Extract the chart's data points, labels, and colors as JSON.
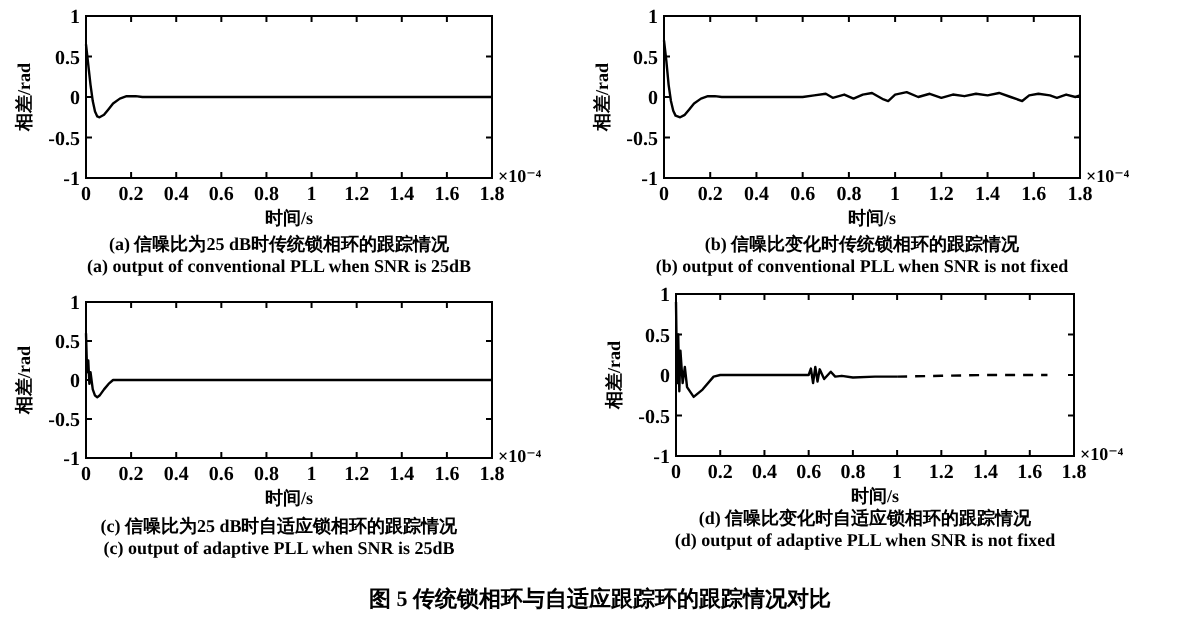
{
  "chart_data": [
    {
      "type": "line",
      "xlabel": "时间/s",
      "ylabel": "相差/rad",
      "xlim": [
        0,
        1.8
      ],
      "ylim": [
        -1,
        1
      ],
      "xticks": [
        0,
        0.2,
        0.4,
        0.6,
        0.8,
        1,
        1.2,
        1.4,
        1.6,
        1.8
      ],
      "yticks": [
        -1,
        -0.5,
        0,
        0.5,
        1
      ],
      "grid": false,
      "series": [
        {
          "color": "#000000",
          "x": [
            0,
            0.01,
            0.02,
            0.03,
            0.04,
            0.05,
            0.06,
            0.08,
            0.1,
            0.12,
            0.15,
            0.18,
            0.2,
            0.22,
            0.25,
            0.3,
            0.5,
            1,
            1.5,
            1.8
          ],
          "values": [
            0.65,
            0.4,
            0.15,
            -0.05,
            -0.18,
            -0.24,
            -0.25,
            -0.22,
            -0.15,
            -0.08,
            -0.02,
            0.01,
            0.01,
            0.01,
            0,
            0,
            0,
            0,
            0,
            0
          ]
        }
      ],
      "annotations": [
        "×10⁻⁴",
        "(a) 信噪比为25 dB时传统锁相环的跟踪情况",
        "(a)  output of conventional PLL when SNR is 25dB"
      ]
    },
    {
      "type": "line",
      "xlabel": "时间/s",
      "ylabel": "相差/rad",
      "xlim": [
        0,
        1.8
      ],
      "ylim": [
        -1,
        1
      ],
      "xticks": [
        0,
        0.2,
        0.4,
        0.6,
        0.8,
        1,
        1.2,
        1.4,
        1.6,
        1.8
      ],
      "yticks": [
        -1,
        -0.5,
        0,
        0.5,
        1
      ],
      "grid": false,
      "series": [
        {
          "color": "#000000",
          "x": [
            0,
            0.01,
            0.02,
            0.03,
            0.04,
            0.05,
            0.07,
            0.09,
            0.11,
            0.13,
            0.16,
            0.19,
            0.22,
            0.25,
            0.3,
            0.5,
            0.6,
            0.65,
            0.7,
            0.73,
            0.78,
            0.82,
            0.86,
            0.9,
            0.95,
            0.97,
            1.0,
            1.05,
            1.1,
            1.15,
            1.2,
            1.25,
            1.3,
            1.35,
            1.4,
            1.45,
            1.5,
            1.55,
            1.58,
            1.62,
            1.67,
            1.7,
            1.74,
            1.78,
            1.8
          ],
          "values": [
            0.7,
            0.45,
            0.15,
            -0.05,
            -0.17,
            -0.23,
            -0.25,
            -0.22,
            -0.15,
            -0.08,
            -0.02,
            0.01,
            0.01,
            0,
            0,
            0,
            0,
            0.02,
            0.04,
            -0.01,
            0.03,
            -0.02,
            0.03,
            0.05,
            -0.03,
            -0.05,
            0.03,
            0.06,
            0,
            0.04,
            -0.01,
            0.03,
            0.01,
            0.04,
            0.02,
            0.05,
            0,
            -0.05,
            0.02,
            0.04,
            0.02,
            -0.01,
            0.03,
            0,
            0.02
          ]
        }
      ],
      "annotations": [
        "×10⁻⁴",
        "(b)  信噪比变化时传统锁相环的跟踪情况",
        "(b) output of conventional PLL when SNR is not fixed"
      ]
    },
    {
      "type": "line",
      "xlabel": "时间/s",
      "ylabel": "相差/rad",
      "xlim": [
        0,
        1.8
      ],
      "ylim": [
        -1,
        1
      ],
      "xticks": [
        0,
        0.2,
        0.4,
        0.6,
        0.8,
        1,
        1.2,
        1.4,
        1.6,
        1.8
      ],
      "yticks": [
        -1,
        -0.5,
        0,
        0.5,
        1
      ],
      "grid": false,
      "series": [
        {
          "color": "#000000",
          "x": [
            0,
            0.005,
            0.01,
            0.015,
            0.02,
            0.03,
            0.04,
            0.05,
            0.06,
            0.08,
            0.1,
            0.12,
            0.15,
            0.3,
            0.6,
            1,
            1.4,
            1.8
          ],
          "values": [
            0.6,
            0.1,
            0.25,
            -0.05,
            0.1,
            -0.12,
            -0.2,
            -0.22,
            -0.2,
            -0.12,
            -0.05,
            0,
            0,
            0,
            0,
            0,
            0,
            0
          ]
        }
      ],
      "annotations": [
        "×10⁻⁴",
        "(c) 信噪比为25 dB时自适应锁相环的跟踪情况",
        "(c) output of adaptive PLL when SNR is 25dB"
      ]
    },
    {
      "type": "line",
      "xlabel": "时间/s",
      "ylabel": "相差/rad",
      "xlim": [
        0,
        1.8
      ],
      "ylim": [
        -1,
        1
      ],
      "xticks": [
        0,
        0.2,
        0.4,
        0.6,
        0.8,
        1,
        1.2,
        1.4,
        1.6,
        1.8
      ],
      "yticks": [
        -1,
        -0.5,
        0,
        0.5,
        1
      ],
      "grid": false,
      "series": [
        {
          "color": "#000000",
          "x": [
            0,
            0.005,
            0.01,
            0.015,
            0.02,
            0.03,
            0.04,
            0.05,
            0.08,
            0.12,
            0.17,
            0.2,
            0.4,
            0.6,
            0.61,
            0.62,
            0.63,
            0.64,
            0.65,
            0.67,
            0.7,
            0.72,
            0.75,
            0.8,
            0.9,
            1.0
          ],
          "values": [
            0.9,
            -0.1,
            0.5,
            -0.2,
            0.3,
            -0.1,
            0.1,
            -0.15,
            -0.27,
            -0.18,
            -0.02,
            0,
            0,
            0,
            0.08,
            -0.1,
            0.1,
            -0.08,
            0.07,
            -0.05,
            0.04,
            -0.02,
            -0.01,
            -0.03,
            -0.02,
            -0.02
          ]
        },
        {
          "color": "#000000",
          "line_style": "dashed",
          "x": [
            1.0,
            1.2,
            1.4,
            1.68
          ],
          "values": [
            -0.02,
            -0.01,
            0,
            0
          ]
        }
      ],
      "annotations": [
        "×10⁻⁴",
        "(d) 信噪比变化时自适应锁相环的跟踪情况",
        "(d) output of adaptive PLL when SNR is not fixed",
        "图 5   传统锁相环与自适应跟踪环的跟踪情况对比"
      ]
    }
  ]
}
